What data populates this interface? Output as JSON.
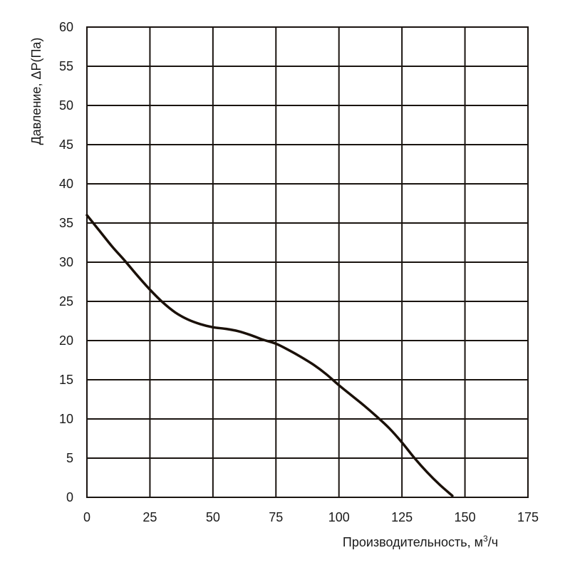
{
  "chart_data": {
    "type": "line",
    "title": "",
    "xlabel": "Производительность, м",
    "xlabel_sup": "3",
    "xlabel_tail": "/ч",
    "ylabel": "Давление,  ΔP(Па)",
    "xlim": [
      0,
      175
    ],
    "ylim": [
      0,
      60
    ],
    "x_ticks": [
      0,
      25,
      50,
      75,
      100,
      125,
      150,
      175
    ],
    "y_ticks": [
      0,
      5,
      10,
      15,
      20,
      25,
      30,
      35,
      40,
      45,
      50,
      55,
      60
    ],
    "grid": true,
    "colors": {
      "curve": "#1a1008",
      "grid": "#1a1410",
      "text": "#1a1a1a"
    },
    "series": [
      {
        "x": [
          0,
          5,
          10,
          15,
          20,
          25,
          30,
          35,
          40,
          45,
          50,
          55,
          60,
          65,
          70,
          75,
          80,
          85,
          90,
          95,
          100,
          105,
          110,
          115,
          120,
          125,
          130,
          135,
          140,
          145
        ],
        "y": [
          36,
          34,
          32,
          30.2,
          28.3,
          26.5,
          24.9,
          23.6,
          22.7,
          22.1,
          21.7,
          21.5,
          21.2,
          20.7,
          20.1,
          19.6,
          18.8,
          17.9,
          16.9,
          15.7,
          14.3,
          13.0,
          11.7,
          10.3,
          8.8,
          7.0,
          5.0,
          3.2,
          1.6,
          0.2
        ]
      }
    ]
  }
}
